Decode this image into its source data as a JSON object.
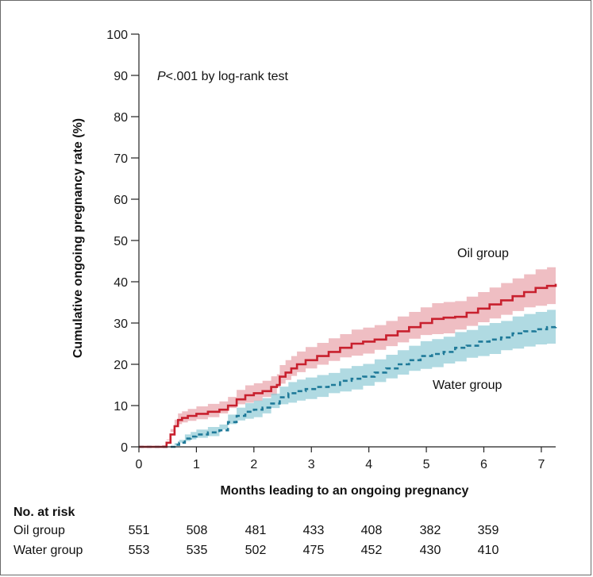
{
  "colors": {
    "oil_line": "#c8202e",
    "oil_band": "#e8a3aa",
    "water_line": "#1f7a99",
    "water_band": "#8fcbd6",
    "axis": "#222222"
  },
  "annotation": {
    "p_italic": "P",
    "p_rest": "<.001 by log-rank test"
  },
  "risk_table": {
    "title": "No. at risk",
    "rows": [
      {
        "label": "Oil group",
        "values": [
          "551",
          "508",
          "481",
          "433",
          "408",
          "382",
          "359"
        ]
      },
      {
        "label": "Water group",
        "values": [
          "553",
          "535",
          "502",
          "475",
          "452",
          "430",
          "410"
        ]
      }
    ]
  },
  "chart_data": {
    "type": "line",
    "title": "",
    "xlabel": "Months leading to an ongoing pregnancy",
    "ylabel": "Cumulative ongoing pregnancy rate (%)",
    "xlim": [
      0,
      7.25
    ],
    "ylim": [
      0,
      100
    ],
    "x_ticks": [
      "0",
      "1",
      "2",
      "3",
      "4",
      "5",
      "6",
      "7"
    ],
    "y_ticks": [
      "0",
      "10",
      "20",
      "30",
      "40",
      "50",
      "60",
      "70",
      "80",
      "90",
      "100"
    ],
    "grid": false,
    "series": [
      {
        "name": "Oil group",
        "style": "solid",
        "x": [
          0,
          0.4,
          0.48,
          0.55,
          0.62,
          0.68,
          0.75,
          0.85,
          1.0,
          1.2,
          1.4,
          1.55,
          1.7,
          1.85,
          2.0,
          2.15,
          2.3,
          2.4,
          2.45,
          2.55,
          2.65,
          2.75,
          2.9,
          3.1,
          3.3,
          3.5,
          3.7,
          3.9,
          4.1,
          4.3,
          4.5,
          4.7,
          4.9,
          5.1,
          5.3,
          5.5,
          5.7,
          5.9,
          6.1,
          6.3,
          6.5,
          6.7,
          6.9,
          7.1,
          7.25
        ],
        "y": [
          0,
          0,
          1,
          3,
          5,
          6.5,
          7,
          7.5,
          8,
          8.5,
          9,
          10,
          11.5,
          12.5,
          13,
          13.5,
          14.5,
          15,
          17,
          18,
          19,
          20,
          21,
          22,
          23,
          24,
          25,
          25.5,
          26,
          27,
          28,
          29,
          30,
          31,
          31.3,
          31.5,
          32.5,
          33.5,
          34.5,
          35.5,
          36.5,
          37.5,
          38.5,
          39,
          39.5
        ],
        "ci_lower": [
          0,
          0,
          0.4,
          1.8,
          3.6,
          5.0,
          5.5,
          5.9,
          6.3,
          6.7,
          7.2,
          8.1,
          9.4,
          10.3,
          10.7,
          11.1,
          12.1,
          12.5,
          14.4,
          15.3,
          16.2,
          17.2,
          18.1,
          19.0,
          19.9,
          20.8,
          21.7,
          22.1,
          22.6,
          23.5,
          24.4,
          25.3,
          26.2,
          27.1,
          27.3,
          27.5,
          28.4,
          29.3,
          30.2,
          31.1,
          32.0,
          32.9,
          33.8,
          34.2,
          34.6
        ],
        "ci_upper": [
          0,
          0,
          1.6,
          4.3,
          6.6,
          8.1,
          8.6,
          9.2,
          9.8,
          10.4,
          11.0,
          12.1,
          13.8,
          14.9,
          15.4,
          16.0,
          17.1,
          17.6,
          19.8,
          21.0,
          22.0,
          23.1,
          24.2,
          25.2,
          26.3,
          27.3,
          28.4,
          28.9,
          29.5,
          30.5,
          31.6,
          32.7,
          33.8,
          34.8,
          35.1,
          35.3,
          36.4,
          37.5,
          38.6,
          39.7,
          40.8,
          41.8,
          43.0,
          43.5,
          44.0
        ]
      },
      {
        "name": "Water group",
        "style": "dashed",
        "x": [
          0,
          0.55,
          0.62,
          0.7,
          0.8,
          0.9,
          1.0,
          1.2,
          1.4,
          1.55,
          1.7,
          1.85,
          2.0,
          2.15,
          2.3,
          2.45,
          2.6,
          2.75,
          2.9,
          3.1,
          3.3,
          3.5,
          3.7,
          3.9,
          4.1,
          4.3,
          4.5,
          4.7,
          4.9,
          5.1,
          5.3,
          5.5,
          5.7,
          5.9,
          6.1,
          6.3,
          6.5,
          6.7,
          6.9,
          7.1,
          7.25
        ],
        "y": [
          0,
          0,
          0.5,
          1,
          2,
          2.5,
          3,
          3.5,
          4,
          6,
          7.5,
          8.5,
          9,
          9.5,
          10.5,
          12,
          13,
          13.5,
          14,
          14.5,
          15,
          16,
          16.5,
          17,
          18,
          19,
          20,
          21,
          22,
          22.5,
          23,
          24,
          24.5,
          25.5,
          26,
          26.5,
          27.5,
          28,
          28.5,
          29,
          29.2
        ],
        "ci_lower": [
          0,
          0,
          0.1,
          0.3,
          1.0,
          1.4,
          1.8,
          2.2,
          2.6,
          4.2,
          5.5,
          6.4,
          6.8,
          7.2,
          8.1,
          9.4,
          10.3,
          10.7,
          11.2,
          11.6,
          12.1,
          13.0,
          13.4,
          13.9,
          14.8,
          15.7,
          16.6,
          17.5,
          18.4,
          18.9,
          19.3,
          20.2,
          20.7,
          21.6,
          22.0,
          22.5,
          23.4,
          23.8,
          24.3,
          24.8,
          25.0
        ],
        "ci_upper": [
          0,
          0,
          0.9,
          1.7,
          3.0,
          3.6,
          4.2,
          4.8,
          5.4,
          7.8,
          9.5,
          10.6,
          11.2,
          11.8,
          12.9,
          14.6,
          15.7,
          16.3,
          16.8,
          17.4,
          17.9,
          19.0,
          19.6,
          20.1,
          21.2,
          22.3,
          23.4,
          24.5,
          25.6,
          26.1,
          26.7,
          27.8,
          28.3,
          29.4,
          30.0,
          30.5,
          31.6,
          32.2,
          32.7,
          33.2,
          33.4
        ]
      }
    ],
    "labels": [
      {
        "text": "Oil group",
        "series": "Oil group"
      },
      {
        "text": "Water group",
        "series": "Water group"
      }
    ]
  }
}
